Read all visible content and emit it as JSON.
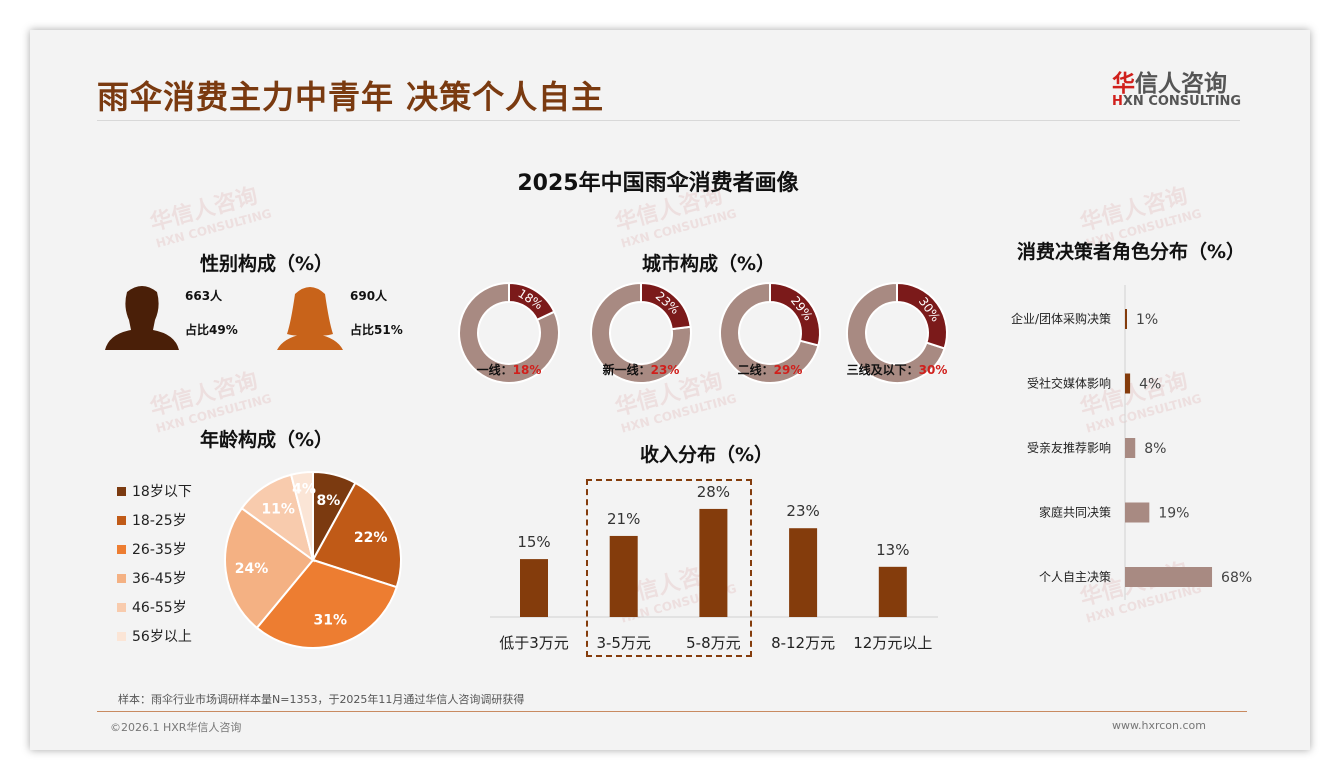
{
  "header": {
    "title": "雨伞消费主力中青年 决策个人自主",
    "logo_cn_red": "华",
    "logo_cn": "信人咨询",
    "logo_en_red": "H",
    "logo_en": "XN CONSULTING"
  },
  "main_title": "2025年中国雨伞消费者画像",
  "watermark": {
    "cn": "华信人咨询",
    "en": "HXN CONSULTING"
  },
  "gender": {
    "title": "性别构成（%）",
    "male": {
      "count": "663人",
      "share": "占比49%"
    },
    "female": {
      "count": "690人",
      "share": "占比51%"
    },
    "colors": {
      "male": "#4a1f08",
      "female": "#c8631a"
    }
  },
  "city": {
    "title": "城市构成（%）",
    "items": [
      {
        "label": "一线：",
        "value": 18,
        "text": "18%"
      },
      {
        "label": "新一线：",
        "value": 23,
        "text": "23%"
      },
      {
        "label": "二线：",
        "value": 29,
        "text": "29%"
      },
      {
        "label": "三线及以下：",
        "value": 30,
        "text": "30%"
      }
    ],
    "colors": {
      "main": "#7b1a1a",
      "rest": "#a88a82"
    }
  },
  "chart_data": [
    {
      "type": "pie",
      "title": "年龄构成（%）",
      "categories": [
        "18岁以下",
        "18-25岁",
        "26-35岁",
        "36-45岁",
        "46-55岁",
        "56岁以上"
      ],
      "values": [
        8,
        22,
        31,
        24,
        11,
        4
      ],
      "colors": [
        "#7b3a10",
        "#c05a17",
        "#ed7d31",
        "#f4b183",
        "#f8cbad",
        "#fbe5d6"
      ],
      "legend": "left"
    },
    {
      "type": "bar",
      "title": "收入分布（%）",
      "categories": [
        "低于3万元",
        "3-5万元",
        "5-8万元",
        "8-12万元",
        "12万元以上"
      ],
      "values": [
        15,
        21,
        28,
        23,
        13
      ],
      "labels": [
        "15%",
        "21%",
        "28%",
        "23%",
        "13%"
      ],
      "color": "#843c0c",
      "highlight": [
        "3-5万元",
        "5-8万元"
      ]
    },
    {
      "type": "bar",
      "orientation": "horizontal",
      "title": "消费决策者角色分布（%）",
      "categories": [
        "企业/团体采购决策",
        "受社交媒体影响",
        "受亲友推荐影响",
        "家庭共同决策",
        "个人自主决策"
      ],
      "values": [
        1,
        4,
        8,
        19,
        68
      ],
      "labels": [
        "1%",
        "4%",
        "8%",
        "19%",
        "68%"
      ],
      "colors": [
        "#843c0c",
        "#843c0c",
        "#a88a82",
        "#a88a82",
        "#a88a82"
      ]
    }
  ],
  "footer": {
    "note": "样本：雨伞行业市场调研样本量N=1353，于2025年11月通过华信人咨询调研获得",
    "copyright": "©2026.1 HXR华信人咨询",
    "website": "www.hxrcon.com"
  }
}
